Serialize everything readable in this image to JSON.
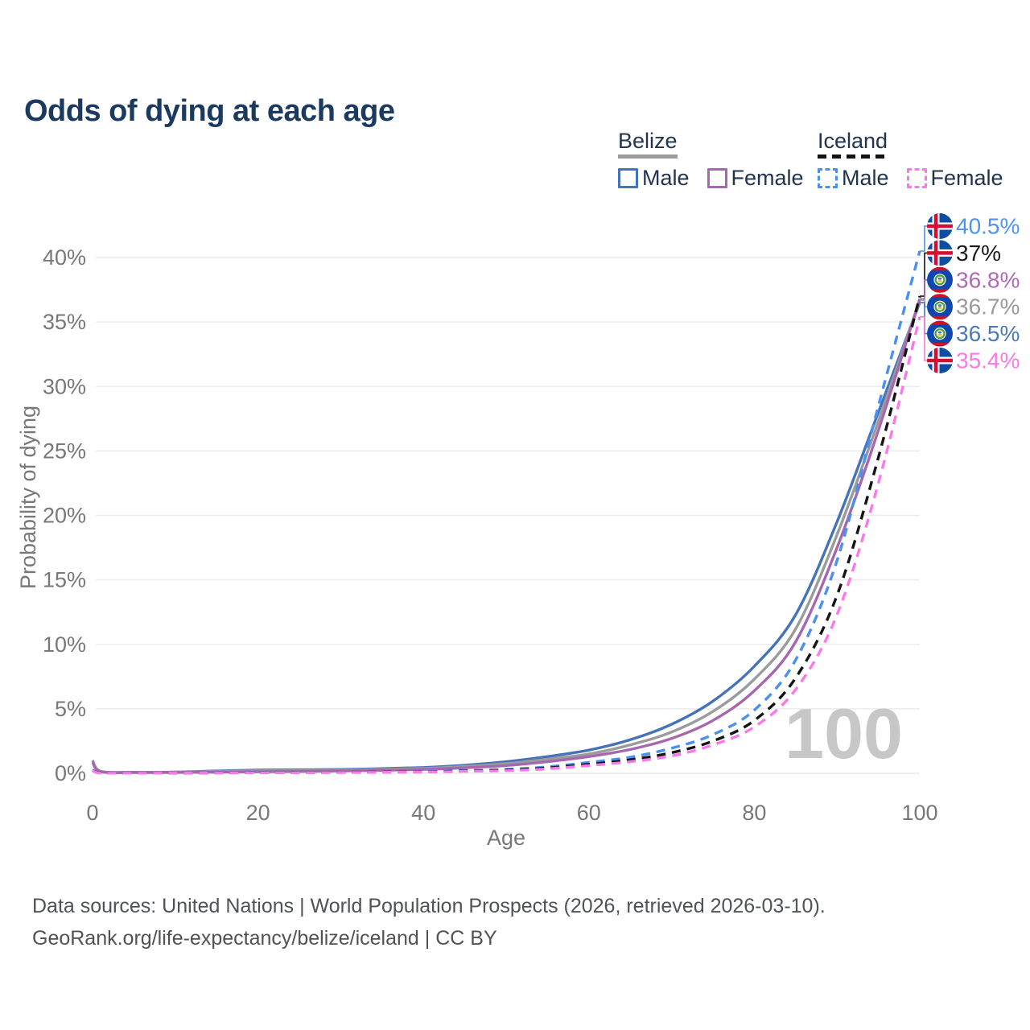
{
  "page": {
    "background": "#ffffff"
  },
  "header": {
    "title": "Odds of dying at each age"
  },
  "legend": {
    "groups": [
      {
        "country": "Belize",
        "line_style": "solid",
        "series_id": "belize-both",
        "items": [
          {
            "label": "Male",
            "series_id": "belize-male"
          },
          {
            "label": "Female",
            "series_id": "belize-female"
          }
        ]
      },
      {
        "country": "Iceland",
        "line_style": "dashed",
        "series_id": "iceland-both",
        "items": [
          {
            "label": "Male",
            "series_id": "iceland-male"
          },
          {
            "label": "Female",
            "series_id": "iceland-female"
          }
        ]
      }
    ]
  },
  "chart_data": {
    "type": "line",
    "title": "Odds of dying at each age",
    "xlabel": "Age",
    "ylabel": "Probability of dying",
    "xlim": [
      0,
      100
    ],
    "ylim": [
      0,
      40
    ],
    "xticks": [
      0,
      20,
      40,
      60,
      80,
      100
    ],
    "yticks": [
      0,
      5,
      10,
      15,
      20,
      25,
      30,
      35,
      40
    ],
    "ytick_suffix": "%",
    "grid": "horizontal-only",
    "grid_color": "#ececec",
    "axis_text_color": "#76787a",
    "legend_position": "top-right",
    "age_cursor_watermark": "100",
    "watermark_color": "#c7c7c7",
    "series": [
      {
        "id": "belize-male",
        "name": "Belize — Male",
        "country": "Belize",
        "sex": "Male",
        "color": "#4573b9",
        "dash": false,
        "flag": "belize",
        "end_value": 36.5,
        "end_label": "36.5%",
        "end_label_color": "#4a7ab8",
        "points": [
          [
            0,
            1.0
          ],
          [
            1,
            0.15
          ],
          [
            5,
            0.08
          ],
          [
            10,
            0.1
          ],
          [
            20,
            0.25
          ],
          [
            30,
            0.3
          ],
          [
            40,
            0.45
          ],
          [
            45,
            0.63
          ],
          [
            50,
            0.9
          ],
          [
            55,
            1.3
          ],
          [
            60,
            1.8
          ],
          [
            65,
            2.6
          ],
          [
            70,
            3.8
          ],
          [
            75,
            5.6
          ],
          [
            80,
            8.3
          ],
          [
            85,
            12.3
          ],
          [
            90,
            19.5
          ],
          [
            95,
            28.0
          ],
          [
            100,
            36.5
          ]
        ]
      },
      {
        "id": "belize-both",
        "name": "Belize — Both sexes",
        "country": "Belize",
        "sex": "Both",
        "color": "#9b9b9b",
        "dash": false,
        "flag": "belize",
        "end_value": 36.7,
        "end_label": "36.7%",
        "end_label_color": "#9a9a9a",
        "points": [
          [
            0,
            0.95
          ],
          [
            1,
            0.13
          ],
          [
            5,
            0.07
          ],
          [
            10,
            0.09
          ],
          [
            20,
            0.2
          ],
          [
            30,
            0.25
          ],
          [
            40,
            0.38
          ],
          [
            45,
            0.53
          ],
          [
            50,
            0.75
          ],
          [
            55,
            1.1
          ],
          [
            60,
            1.5
          ],
          [
            65,
            2.2
          ],
          [
            70,
            3.2
          ],
          [
            75,
            4.8
          ],
          [
            80,
            7.3
          ],
          [
            85,
            11.2
          ],
          [
            90,
            18.5
          ],
          [
            95,
            27.3
          ],
          [
            100,
            36.7
          ]
        ]
      },
      {
        "id": "belize-female",
        "name": "Belize — Female",
        "country": "Belize",
        "sex": "Female",
        "color": "#a667ae",
        "dash": false,
        "flag": "belize",
        "end_value": 36.8,
        "end_label": "36.8%",
        "end_label_color": "#b06ab5",
        "points": [
          [
            0,
            0.85
          ],
          [
            1,
            0.12
          ],
          [
            5,
            0.06
          ],
          [
            10,
            0.07
          ],
          [
            20,
            0.12
          ],
          [
            30,
            0.18
          ],
          [
            40,
            0.3
          ],
          [
            45,
            0.43
          ],
          [
            50,
            0.6
          ],
          [
            55,
            0.9
          ],
          [
            60,
            1.3
          ],
          [
            65,
            1.85
          ],
          [
            70,
            2.7
          ],
          [
            75,
            4.1
          ],
          [
            80,
            6.4
          ],
          [
            85,
            10.2
          ],
          [
            90,
            17.5
          ],
          [
            95,
            26.6
          ],
          [
            100,
            36.8
          ]
        ]
      },
      {
        "id": "iceland-male",
        "name": "Iceland — Male",
        "country": "Iceland",
        "sex": "Male",
        "color": "#4a90f0",
        "dash": true,
        "flag": "iceland",
        "end_value": 40.5,
        "end_label": "40.5%",
        "end_label_color": "#4f93ee",
        "points": [
          [
            0,
            0.25
          ],
          [
            1,
            0.03
          ],
          [
            5,
            0.01
          ],
          [
            10,
            0.02
          ],
          [
            20,
            0.07
          ],
          [
            30,
            0.1
          ],
          [
            40,
            0.15
          ],
          [
            45,
            0.22
          ],
          [
            50,
            0.3
          ],
          [
            55,
            0.5
          ],
          [
            60,
            0.85
          ],
          [
            65,
            1.25
          ],
          [
            70,
            1.95
          ],
          [
            75,
            3.0
          ],
          [
            80,
            4.9
          ],
          [
            85,
            8.8
          ],
          [
            90,
            16.5
          ],
          [
            95,
            28.5
          ],
          [
            100,
            40.5
          ]
        ]
      },
      {
        "id": "iceland-both",
        "name": "Iceland — Both sexes",
        "country": "Iceland",
        "sex": "Both",
        "color": "#141414",
        "dash": true,
        "flag": "iceland",
        "end_value": 37,
        "end_label": "37%",
        "end_label_color": "#1a1a1a",
        "points": [
          [
            0,
            0.22
          ],
          [
            1,
            0.03
          ],
          [
            5,
            0.01
          ],
          [
            10,
            0.02
          ],
          [
            20,
            0.05
          ],
          [
            30,
            0.08
          ],
          [
            40,
            0.12
          ],
          [
            45,
            0.18
          ],
          [
            50,
            0.25
          ],
          [
            55,
            0.42
          ],
          [
            60,
            0.7
          ],
          [
            65,
            1.05
          ],
          [
            70,
            1.6
          ],
          [
            75,
            2.5
          ],
          [
            80,
            4.1
          ],
          [
            85,
            7.4
          ],
          [
            90,
            13.8
          ],
          [
            95,
            24.5
          ],
          [
            100,
            37.0
          ]
        ]
      },
      {
        "id": "iceland-female",
        "name": "Iceland — Female",
        "country": "Iceland",
        "sex": "Female",
        "color": "#fa78e8",
        "dash": true,
        "flag": "iceland",
        "end_value": 35.4,
        "end_label": "35.4%",
        "end_label_color": "#fa78e8",
        "points": [
          [
            0,
            0.2
          ],
          [
            1,
            0.02
          ],
          [
            5,
            0.01
          ],
          [
            10,
            0.02
          ],
          [
            20,
            0.04
          ],
          [
            30,
            0.06
          ],
          [
            40,
            0.1
          ],
          [
            45,
            0.15
          ],
          [
            50,
            0.2
          ],
          [
            55,
            0.35
          ],
          [
            60,
            0.6
          ],
          [
            65,
            0.9
          ],
          [
            70,
            1.35
          ],
          [
            75,
            2.2
          ],
          [
            80,
            3.6
          ],
          [
            85,
            6.5
          ],
          [
            90,
            12.3
          ],
          [
            95,
            22.5
          ],
          [
            100,
            35.4
          ]
        ]
      }
    ]
  },
  "footer": {
    "line1": "Data sources: United Nations | World Population Prospects (2026, retrieved 2026-03-10).",
    "line2": "GeoRank.org/life-expectancy/belize/iceland | CC BY"
  }
}
